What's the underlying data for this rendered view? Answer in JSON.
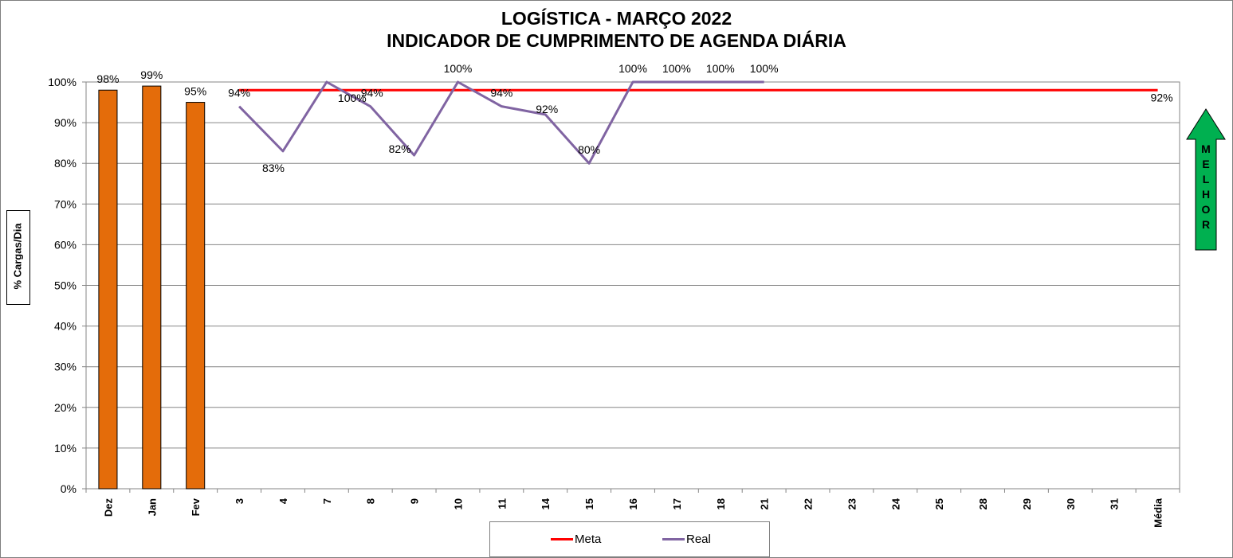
{
  "title_line1": "LOGÍSTICA -  MARÇO 2022",
  "title_line2": "INDICADOR DE CUMPRIMENTO DE AGENDA DIÁRIA",
  "arrow_label": [
    "M",
    "E",
    "L",
    "H",
    "O",
    "R"
  ],
  "colors": {
    "bar": "#E46C0A",
    "meta": "#FF0000",
    "real": "#8064A2",
    "arrow": "#00B050"
  },
  "chart_data": {
    "type": "bar+line",
    "ylabel": "% Cargas/Dia",
    "ylim": [
      0,
      100
    ],
    "yticks": [
      "0%",
      "10%",
      "20%",
      "30%",
      "40%",
      "50%",
      "60%",
      "70%",
      "80%",
      "90%",
      "100%"
    ],
    "categories": [
      "Dez",
      "Jan",
      "Fev",
      "3",
      "4",
      "7",
      "8",
      "9",
      "10",
      "11",
      "14",
      "15",
      "16",
      "17",
      "18",
      "21",
      "22",
      "23",
      "24",
      "25",
      "28",
      "29",
      "30",
      "31",
      "Média"
    ],
    "bars": {
      "values": [
        98,
        99,
        95,
        null,
        null,
        null,
        null,
        null,
        null,
        null,
        null,
        null,
        null,
        null,
        null,
        null,
        null,
        null,
        null,
        null,
        null,
        null,
        null,
        null,
        null
      ],
      "labels": [
        "98%",
        "99%",
        "95%"
      ]
    },
    "series": [
      {
        "name": "Meta",
        "type": "line",
        "color": "#FF0000",
        "values": [
          null,
          null,
          null,
          98,
          98,
          98,
          98,
          98,
          98,
          98,
          98,
          98,
          98,
          98,
          98,
          98,
          98,
          98,
          98,
          98,
          98,
          98,
          98,
          98,
          98
        ]
      },
      {
        "name": "Real",
        "type": "line",
        "color": "#8064A2",
        "values": [
          null,
          null,
          null,
          94,
          83,
          100,
          94,
          82,
          100,
          94,
          92,
          80,
          100,
          100,
          100,
          100,
          null,
          null,
          null,
          null,
          null,
          null,
          null,
          null,
          null
        ],
        "labels": [
          null,
          null,
          null,
          "94%",
          "83%",
          "100%",
          "94%",
          "82%",
          "100%",
          "94%",
          "92%",
          "80%",
          "100%",
          "100%",
          "100%",
          "100%",
          null,
          null,
          null,
          null,
          null,
          null,
          null,
          null,
          "92%"
        ]
      }
    ],
    "legend": [
      "Meta",
      "Real"
    ],
    "legend_position": "bottom",
    "grid": true
  }
}
